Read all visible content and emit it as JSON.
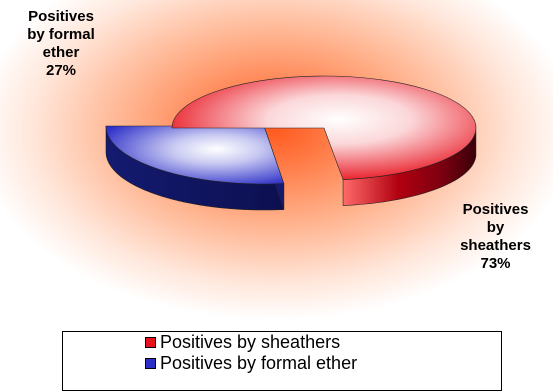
{
  "chart_data": {
    "type": "pie",
    "subtype": "3d-exploded",
    "title": "",
    "slices": [
      {
        "label": "Positives by sheathers",
        "value": 73,
        "percent_label": "73%",
        "color": "#e8101c",
        "side_color": "#b00010"
      },
      {
        "label": "Positives by formal ether",
        "value": 27,
        "percent_label": "27%",
        "color": "#2c2ec8",
        "side_color": "#141a70"
      }
    ],
    "data_labels": {
      "sheathers": [
        "Positives",
        "by",
        "sheathers",
        "73%"
      ],
      "formal": [
        "Positives",
        "by formal",
        "ether",
        "27%"
      ]
    },
    "legend": {
      "placement": "bottom",
      "items": [
        "Positives by sheathers",
        "Positives by formal ether"
      ]
    },
    "background": {
      "center_color": "#ff5a1f",
      "edge_color": "#ffffff"
    }
  }
}
